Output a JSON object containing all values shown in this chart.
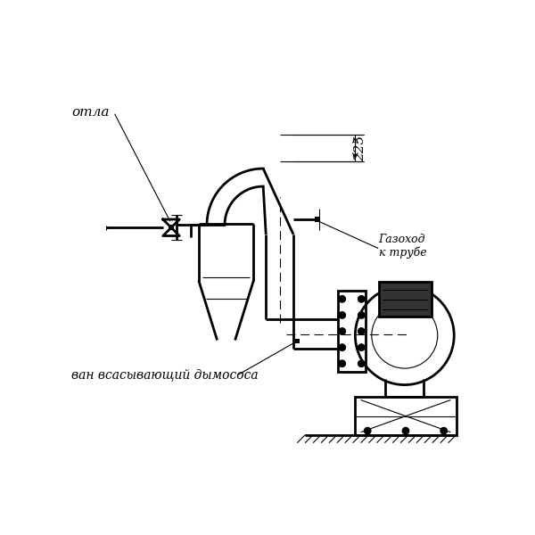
{
  "bg_color": "#ffffff",
  "lc": "#000000",
  "label_kotla": "отла",
  "label_gazokhod": "Газоход\nк трубе",
  "label_vsan": "ван всасывающий дымососа",
  "dim_225": "225"
}
